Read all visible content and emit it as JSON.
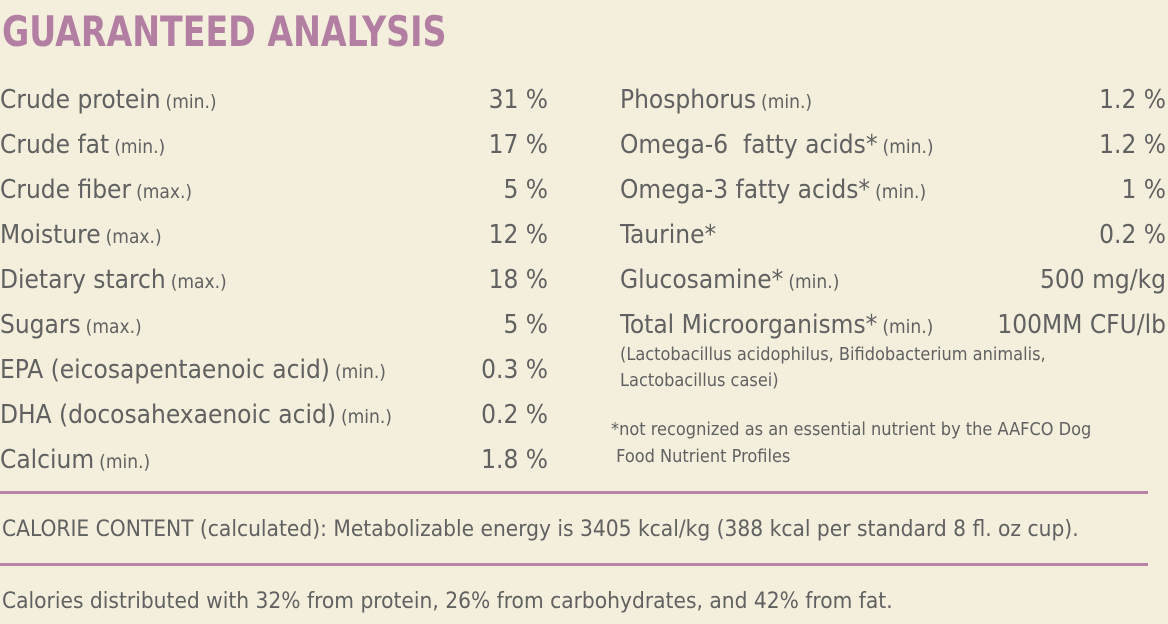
{
  "title": "GUARANTEED ANALYSIS",
  "left": [
    {
      "name": "Crude protein",
      "qual": "(min.)",
      "value": "31 %"
    },
    {
      "name": "Crude fat",
      "qual": "(min.)",
      "value": "17 %"
    },
    {
      "name": "Crude fiber",
      "qual": "(max.)",
      "value": "5 %"
    },
    {
      "name": "Moisture",
      "qual": "(max.)",
      "value": "12 %"
    },
    {
      "name": "Dietary starch",
      "qual": "(max.)",
      "value": "18 %"
    },
    {
      "name": "Sugars",
      "qual": "(max.)",
      "value": "5 %"
    },
    {
      "name": "EPA (eicosapentaenoic acid)",
      "qual": "(min.)",
      "value": "0.3 %"
    },
    {
      "name": "DHA (docosahexaenoic acid)",
      "qual": "(min.)",
      "value": "0.2 %"
    },
    {
      "name": "Calcium",
      "qual": "(min.)",
      "value": "1.8 %"
    }
  ],
  "right": [
    {
      "name": "Phosphorus",
      "qual": "(min.)",
      "value": "1.2 %"
    },
    {
      "name": "Omega-6  fatty acids*",
      "qual": "(min.)",
      "value": "1.2 %"
    },
    {
      "name": "Omega-3 fatty acids*",
      "qual": "(min.)",
      "value": "1 %"
    },
    {
      "name": "Taurine*",
      "qual": "",
      "value": "0.2 %"
    },
    {
      "name": "Glucosamine*",
      "qual": "(min.)",
      "value": "500 mg/kg"
    },
    {
      "name": "Total Microorganisms*",
      "qual": "(min.)",
      "value": "100MM CFU/lb"
    }
  ],
  "microorganisms_note_line1": "(Lactobacillus acidophilus, Bifidobacterium animalis,",
  "microorganisms_note_line2": "Lactobacillus casei)",
  "footnote_line1": "*not recognized as an essential nutrient by the AAFCO Dog",
  "footnote_line2": " Food Nutrient Profiles",
  "calorie_content": "CALORIE CONTENT (calculated): Metabolizable energy is 3405 kcal/kg (388 kcal per standard 8 fl. oz cup).",
  "calorie_distribution": "Calories distributed with 32% from protein, 26% from carbohydrates, and 42% from fat.",
  "colors": {
    "accent": "#b27fa3",
    "background": "#f3efdc",
    "text": "#616161"
  }
}
